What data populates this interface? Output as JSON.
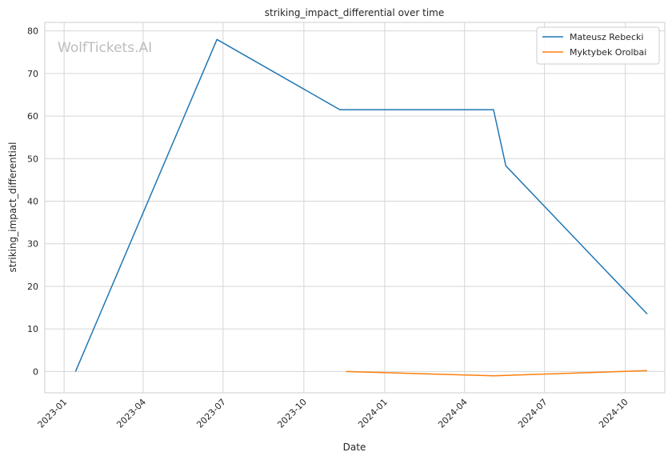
{
  "chart_data": {
    "type": "line",
    "title": "striking_impact_differential over time",
    "xlabel": "Date",
    "ylabel": "striking_impact_differential",
    "watermark": "WolfTickets.AI",
    "grid": true,
    "legend_position": "top-right",
    "x_ticks": [
      "2023-01",
      "2023-04",
      "2023-07",
      "2023-10",
      "2024-01",
      "2024-04",
      "2024-07",
      "2024-10"
    ],
    "y_ticks": [
      0,
      10,
      20,
      30,
      40,
      50,
      60,
      70,
      80
    ],
    "xlim": [
      "2022-12-10",
      "2024-11-15"
    ],
    "ylim": [
      -5,
      82
    ],
    "series": [
      {
        "name": "Mateusz Rebecki",
        "color": "#1f77b4",
        "points": [
          {
            "date": "2023-01-14",
            "value": 0
          },
          {
            "date": "2023-06-24",
            "value": 78
          },
          {
            "date": "2023-11-11",
            "value": 61.5
          },
          {
            "date": "2024-05-04",
            "value": 61.5
          },
          {
            "date": "2024-05-18",
            "value": 48.3
          },
          {
            "date": "2024-10-26",
            "value": 13.5
          }
        ]
      },
      {
        "name": "Myktybek Orolbai",
        "color": "#ff7f0e",
        "points": [
          {
            "date": "2023-11-18",
            "value": 0
          },
          {
            "date": "2024-05-04",
            "value": -1
          },
          {
            "date": "2024-10-26",
            "value": 0.2
          }
        ]
      }
    ]
  }
}
